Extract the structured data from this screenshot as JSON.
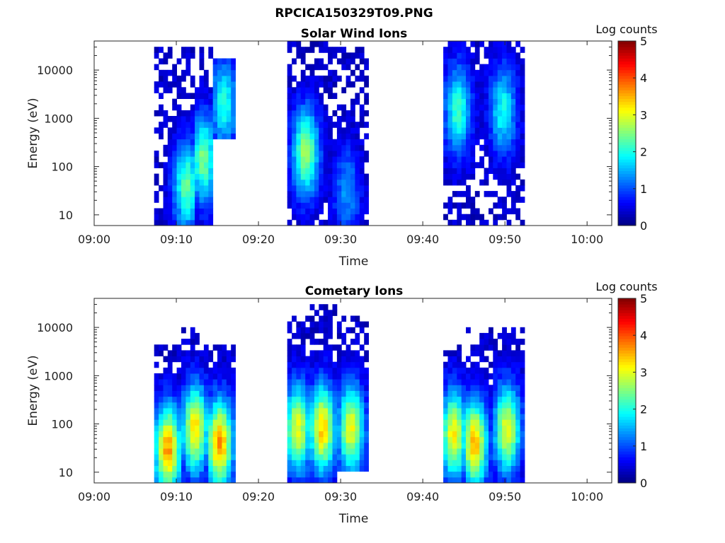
{
  "figure": {
    "title": "RPCICA150329T09.PNG"
  },
  "chart_data": [
    {
      "type": "heatmap",
      "title": "Solar Wind Ions",
      "xlabel": "Time",
      "ylabel": "Energy (eV)",
      "x_ticks": [
        "09:00",
        "09:10",
        "09:20",
        "09:30",
        "09:40",
        "09:50",
        "10:00"
      ],
      "y_ticks": [
        "10",
        "100",
        "1000",
        "10000"
      ],
      "y_scale": "log",
      "ylim": [
        6,
        40000
      ],
      "xlim_minutes_after_0900": [
        0,
        63
      ],
      "colorbar": {
        "label": "Log counts",
        "ticks": [
          "0",
          "1",
          "2",
          "3",
          "4",
          "5"
        ],
        "range": [
          0,
          5
        ],
        "colormap": "jet"
      },
      "segments": [
        {
          "start_min": 7.3,
          "end_min": 16.7,
          "sub_bursts": [
            {
              "center_min": 11.0,
              "floor_eV": 6,
              "peak_eV": 40,
              "peak_log": 2.0,
              "max_eV": 30000
            },
            {
              "center_min": 13.0,
              "floor_eV": 6,
              "peak_eV": 150,
              "peak_log": 2.1,
              "max_eV": 30000
            },
            {
              "center_min": 15.5,
              "floor_eV": 400,
              "peak_eV": 2000,
              "peak_log": 1.7,
              "max_eV": 20000
            }
          ]
        },
        {
          "start_min": 23.5,
          "end_min": 33.0,
          "sub_bursts": [
            {
              "center_min": 25.5,
              "floor_eV": 6,
              "peak_eV": 200,
              "peak_log": 2.3,
              "max_eV": 40000
            },
            {
              "center_min": 30.5,
              "floor_eV": 6,
              "peak_eV": 30,
              "peak_log": 1.0,
              "max_eV": 30000
            }
          ]
        },
        {
          "start_min": 42.5,
          "end_min": 52.2,
          "sub_bursts": [
            {
              "center_min": 44.0,
              "floor_eV": 6,
              "peak_eV": 1500,
              "peak_log": 1.8,
              "max_eV": 40000
            },
            {
              "center_min": 49.5,
              "floor_eV": 6,
              "peak_eV": 1500,
              "peak_log": 1.6,
              "max_eV": 40000
            }
          ]
        }
      ]
    },
    {
      "type": "heatmap",
      "title": "Cometary Ions",
      "xlabel": "Time",
      "ylabel": "Energy (eV)",
      "x_ticks": [
        "09:00",
        "09:10",
        "09:20",
        "09:30",
        "09:40",
        "09:50",
        "10:00"
      ],
      "y_ticks": [
        "10",
        "100",
        "1000",
        "10000"
      ],
      "y_scale": "log",
      "ylim": [
        6,
        40000
      ],
      "xlim_minutes_after_0900": [
        0,
        63
      ],
      "colorbar": {
        "label": "Log counts",
        "ticks": [
          "0",
          "1",
          "2",
          "3",
          "4",
          "5"
        ],
        "range": [
          0,
          5
        ],
        "colormap": "jet"
      },
      "segments": [
        {
          "start_min": 7.3,
          "end_min": 17.0,
          "sub_bursts": [
            {
              "center_min": 8.7,
              "floor_eV": 6,
              "peak_eV": 30,
              "peak_log": 3.3,
              "max_eV": 5000
            },
            {
              "center_min": 12.0,
              "floor_eV": 6,
              "peak_eV": 80,
              "peak_log": 2.9,
              "max_eV": 10000
            },
            {
              "center_min": 15.0,
              "floor_eV": 6,
              "peak_eV": 40,
              "peak_log": 3.3,
              "max_eV": 5000
            }
          ]
        },
        {
          "start_min": 23.5,
          "end_min": 33.0,
          "sub_bursts": [
            {
              "center_min": 24.5,
              "floor_eV": 6,
              "peak_eV": 80,
              "peak_log": 2.7,
              "max_eV": 20000
            },
            {
              "center_min": 27.5,
              "floor_eV": 6,
              "peak_eV": 80,
              "peak_log": 3.0,
              "max_eV": 30000
            },
            {
              "center_min": 31.0,
              "floor_eV": 10,
              "peak_eV": 80,
              "peak_log": 2.7,
              "max_eV": 20000
            }
          ]
        },
        {
          "start_min": 42.5,
          "end_min": 52.2,
          "sub_bursts": [
            {
              "center_min": 43.5,
              "floor_eV": 6,
              "peak_eV": 60,
              "peak_log": 2.8,
              "max_eV": 5000
            },
            {
              "center_min": 46.0,
              "floor_eV": 6,
              "peak_eV": 40,
              "peak_log": 3.1,
              "max_eV": 10000
            },
            {
              "center_min": 50.0,
              "floor_eV": 6,
              "peak_eV": 80,
              "peak_log": 2.7,
              "max_eV": 10000
            }
          ]
        }
      ]
    }
  ]
}
